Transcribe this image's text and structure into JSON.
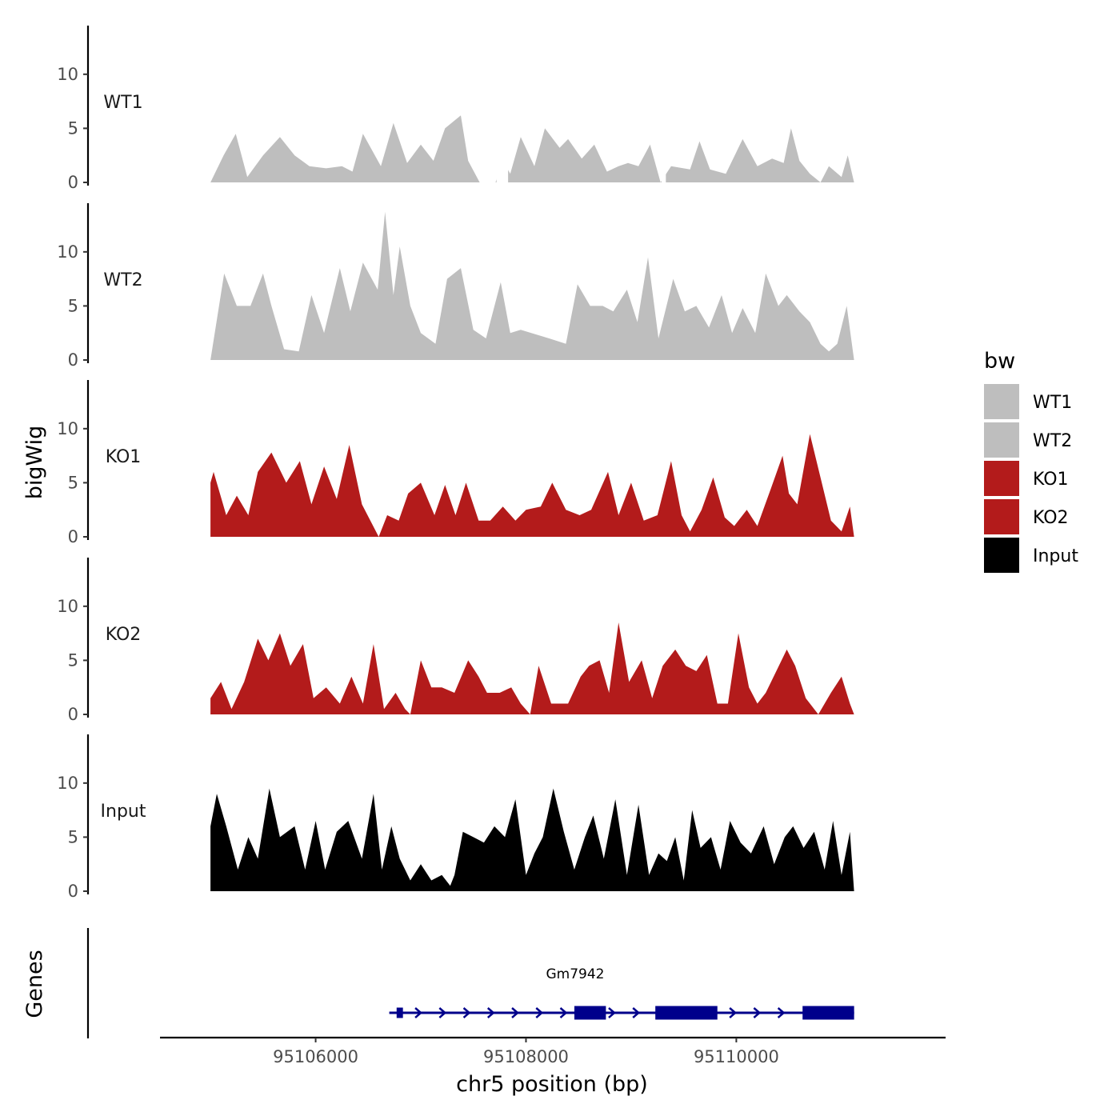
{
  "chart_data": {
    "type": "area",
    "ylabel": "bigWig",
    "genes_label": "Genes",
    "xlabel": "chr5 position (bp)",
    "xlim": [
      95104520,
      95111990
    ],
    "xticks": [
      95106000,
      95108000,
      95110000
    ],
    "xtick_labels": [
      "95106000",
      "95108000",
      "95110000"
    ],
    "ylim": [
      0,
      14.5
    ],
    "yticks": [
      0,
      5,
      10
    ],
    "ytick_labels": [
      "0",
      "5",
      "10"
    ],
    "legend": {
      "title": "bw",
      "position": "right",
      "entries": [
        {
          "label": "WT1",
          "color": "#bebebe"
        },
        {
          "label": "WT2",
          "color": "#bebebe"
        },
        {
          "label": "KO1",
          "color": "#b31b1b"
        },
        {
          "label": "KO2",
          "color": "#b31b1b"
        },
        {
          "label": "Input",
          "color": "#000000"
        }
      ]
    },
    "tracks": [
      {
        "name": "WT1",
        "color": "#bebebe",
        "x": [
          95105000,
          95105125,
          95105240,
          95105350,
          95105500,
          95105660,
          95105800,
          95105940,
          95106100,
          95106250,
          95106350,
          95106450,
          95106620,
          95106740,
          95106870,
          95107000,
          95107120,
          95107230,
          95107380,
          95107450,
          95107560,
          95107650,
          95107710,
          95107780,
          95107850,
          95107950,
          95108080,
          95108180,
          95108320,
          95108400,
          95108530,
          95108650,
          95108770,
          95108880,
          95108970,
          95109070,
          95109180,
          95109280,
          95109380,
          95109560,
          95109650,
          95109750,
          95109900,
          95110060,
          95110200,
          95110340,
          95110450,
          95110520,
          95110600,
          95110700,
          95110800,
          95110880,
          95111000,
          95111060,
          95111120
        ],
        "y": [
          0,
          2.5,
          4.5,
          0.5,
          2.5,
          4.2,
          2.5,
          1.5,
          1.3,
          1.5,
          1.0,
          4.5,
          1.5,
          5.5,
          1.8,
          3.5,
          2.0,
          5.0,
          6.2,
          2.0,
          0,
          0,
          0,
          2.0,
          0.8,
          4.2,
          1.5,
          5.0,
          3.2,
          4.0,
          2.2,
          3.5,
          1.0,
          1.5,
          1.8,
          1.5,
          3.5,
          0,
          1.5,
          1.2,
          3.8,
          1.2,
          0.8,
          4.0,
          1.5,
          2.2,
          1.8,
          5.0,
          2.0,
          0.8,
          0,
          1.5,
          0.5,
          2.5,
          0
        ],
        "gaps": [
          [
            95107720,
            95107830
          ],
          [
            95109290,
            95109330
          ]
        ]
      },
      {
        "name": "WT2",
        "color": "#bebebe",
        "x": [
          95105000,
          95105130,
          95105250,
          95105380,
          95105500,
          95105580,
          95105700,
          95105840,
          95105960,
          95106080,
          95106230,
          95106330,
          95106450,
          95106590,
          95106660,
          95106740,
          95106800,
          95106900,
          95107000,
          95107140,
          95107250,
          95107380,
          95107500,
          95107620,
          95107760,
          95107850,
          95107950,
          95108050,
          95108220,
          95108380,
          95108490,
          95108610,
          95108730,
          95108830,
          95108960,
          95109060,
          95109160,
          95109260,
          95109400,
          95109510,
          95109620,
          95109740,
          95109860,
          95109960,
          95110060,
          95110180,
          95110280,
          95110400,
          95110480,
          95110600,
          95110700,
          95110800,
          95110880,
          95110960,
          95111050,
          95111120
        ],
        "y": [
          0,
          8.0,
          5.0,
          5.0,
          8.0,
          5.0,
          1.0,
          0.8,
          6.0,
          2.5,
          8.5,
          4.5,
          9.0,
          6.5,
          13.7,
          6.0,
          10.5,
          5.0,
          2.5,
          1.5,
          7.5,
          8.5,
          2.8,
          2.0,
          7.2,
          2.5,
          2.8,
          2.5,
          2.0,
          1.5,
          7.0,
          5.0,
          5.0,
          4.5,
          6.5,
          3.5,
          9.5,
          2.0,
          7.5,
          4.5,
          5.0,
          3.0,
          6.0,
          2.5,
          4.8,
          2.5,
          8.0,
          5.0,
          6.0,
          4.5,
          3.5,
          1.5,
          0.8,
          1.5,
          5.0,
          0
        ],
        "gaps": []
      },
      {
        "name": "KO1",
        "color": "#b31b1b",
        "x": [
          95105000,
          95105030,
          95105150,
          95105250,
          95105360,
          95105450,
          95105580,
          95105720,
          95105850,
          95105960,
          95106080,
          95106200,
          95106320,
          95106440,
          95106600,
          95106680,
          95106790,
          95106880,
          95107000,
          95107130,
          95107230,
          95107330,
          95107430,
          95107550,
          95107660,
          95107780,
          95107900,
          95108000,
          95108140,
          95108250,
          95108380,
          95108510,
          95108620,
          95108780,
          95108880,
          95109000,
          95109120,
          95109250,
          95109380,
          95109480,
          95109560,
          95109670,
          95109780,
          95109890,
          95109980,
          95110100,
          95110200,
          95110330,
          95110440,
          95110500,
          95110580,
          95110700,
          95110800,
          95110900,
          95111000,
          95111080,
          95111120
        ],
        "y": [
          5.0,
          6.0,
          2.0,
          3.8,
          2.0,
          6.0,
          7.8,
          5.0,
          7.0,
          3.0,
          6.5,
          3.5,
          8.5,
          3.0,
          0,
          2.0,
          1.5,
          4.0,
          5.0,
          2.0,
          4.8,
          2.0,
          5.0,
          1.5,
          1.5,
          2.8,
          1.5,
          2.5,
          2.8,
          5.0,
          2.5,
          2.0,
          2.5,
          6.0,
          2.0,
          5.0,
          1.5,
          2.0,
          7.0,
          2.0,
          0.5,
          2.5,
          5.5,
          1.8,
          1.0,
          2.5,
          1.0,
          4.5,
          7.5,
          4.0,
          3.0,
          9.5,
          5.5,
          1.5,
          0.5,
          2.8,
          0
        ],
        "gaps": []
      },
      {
        "name": "KO2",
        "color": "#b31b1b",
        "x": [
          95105000,
          95105100,
          95105200,
          95105320,
          95105450,
          95105550,
          95105660,
          95105760,
          95105880,
          95105980,
          95106100,
          95106230,
          95106340,
          95106450,
          95106550,
          95106650,
          95106760,
          95106850,
          95106900,
          95107000,
          95107100,
          95107200,
          95107320,
          95107450,
          95107550,
          95107630,
          95107750,
          95107860,
          95107950,
          95108040,
          95108120,
          95108240,
          95108400,
          95108520,
          95108600,
          95108700,
          95108790,
          95108880,
          95108980,
          95109100,
          95109200,
          95109300,
          95109420,
          95109520,
          95109620,
          95109720,
          95109820,
          95109920,
          95110020,
          95110120,
          95110200,
          95110280,
          95110380,
          95110480,
          95110560,
          95110660,
          95110780,
          95110900,
          95111000,
          95111080,
          95111120
        ],
        "y": [
          1.5,
          3.0,
          0.5,
          3.0,
          7.0,
          5.0,
          7.5,
          4.5,
          6.5,
          1.5,
          2.5,
          1.0,
          3.5,
          1.0,
          6.5,
          0.5,
          2.0,
          0.5,
          0,
          5.0,
          2.5,
          2.5,
          2.0,
          5.0,
          3.5,
          2.0,
          2.0,
          2.5,
          1.0,
          0,
          4.5,
          1.0,
          1.0,
          3.5,
          4.5,
          5.0,
          2.0,
          8.5,
          3.0,
          5.0,
          1.5,
          4.5,
          6.0,
          4.5,
          4.0,
          5.5,
          1.0,
          1.0,
          7.5,
          2.5,
          1.0,
          2.0,
          4.0,
          6.0,
          4.5,
          1.5,
          0,
          2.0,
          3.5,
          1.0,
          0
        ],
        "gaps": []
      },
      {
        "name": "Input",
        "color": "#000000",
        "x": [
          95105000,
          95105060,
          95105150,
          95105260,
          95105360,
          95105450,
          95105560,
          95105660,
          95105800,
          95105900,
          95106000,
          95106090,
          95106200,
          95106310,
          95106440,
          95106550,
          95106630,
          95106720,
          95106800,
          95106900,
          95107000,
          95107100,
          95107200,
          95107280,
          95107320,
          95107400,
          95107500,
          95107600,
          95107700,
          95107800,
          95107900,
          95108000,
          95108080,
          95108160,
          95108260,
          95108360,
          95108460,
          95108560,
          95108640,
          95108740,
          95108850,
          95108960,
          95109070,
          95109170,
          95109260,
          95109340,
          95109420,
          95109500,
          95109580,
          95109660,
          95109760,
          95109850,
          95109940,
          95110040,
          95110140,
          95110260,
          95110360,
          95110460,
          95110540,
          95110640,
          95110740,
          95110840,
          95110920,
          95111000,
          95111080,
          95111120
        ],
        "y": [
          6.0,
          9.0,
          6.0,
          2.0,
          5.0,
          3.0,
          9.5,
          5.0,
          6.0,
          2.0,
          6.5,
          2.0,
          5.5,
          6.5,
          3.0,
          9.0,
          2.0,
          6.0,
          3.0,
          1.0,
          2.5,
          1.0,
          1.5,
          0.5,
          1.5,
          5.5,
          5.0,
          4.5,
          6.0,
          5.0,
          8.5,
          1.5,
          3.5,
          5.0,
          9.5,
          5.5,
          2.0,
          5.0,
          7.0,
          3.0,
          8.5,
          1.5,
          8.0,
          1.5,
          3.5,
          2.8,
          5.0,
          1.0,
          7.5,
          4.0,
          5.0,
          2.0,
          6.5,
          4.5,
          3.5,
          6.0,
          2.5,
          5.0,
          6.0,
          4.0,
          5.5,
          2.0,
          6.5,
          1.5,
          5.5,
          0
        ],
        "gaps": []
      }
    ],
    "gene": {
      "name": "Gm7942",
      "color": "#00008b",
      "start": 95106700,
      "end": 95111120,
      "strand": "+",
      "exons": [
        [
          95106770,
          95106830
        ],
        [
          95108460,
          95108760
        ],
        [
          95109230,
          95109820
        ],
        [
          95110630,
          95111120
        ]
      ]
    }
  }
}
